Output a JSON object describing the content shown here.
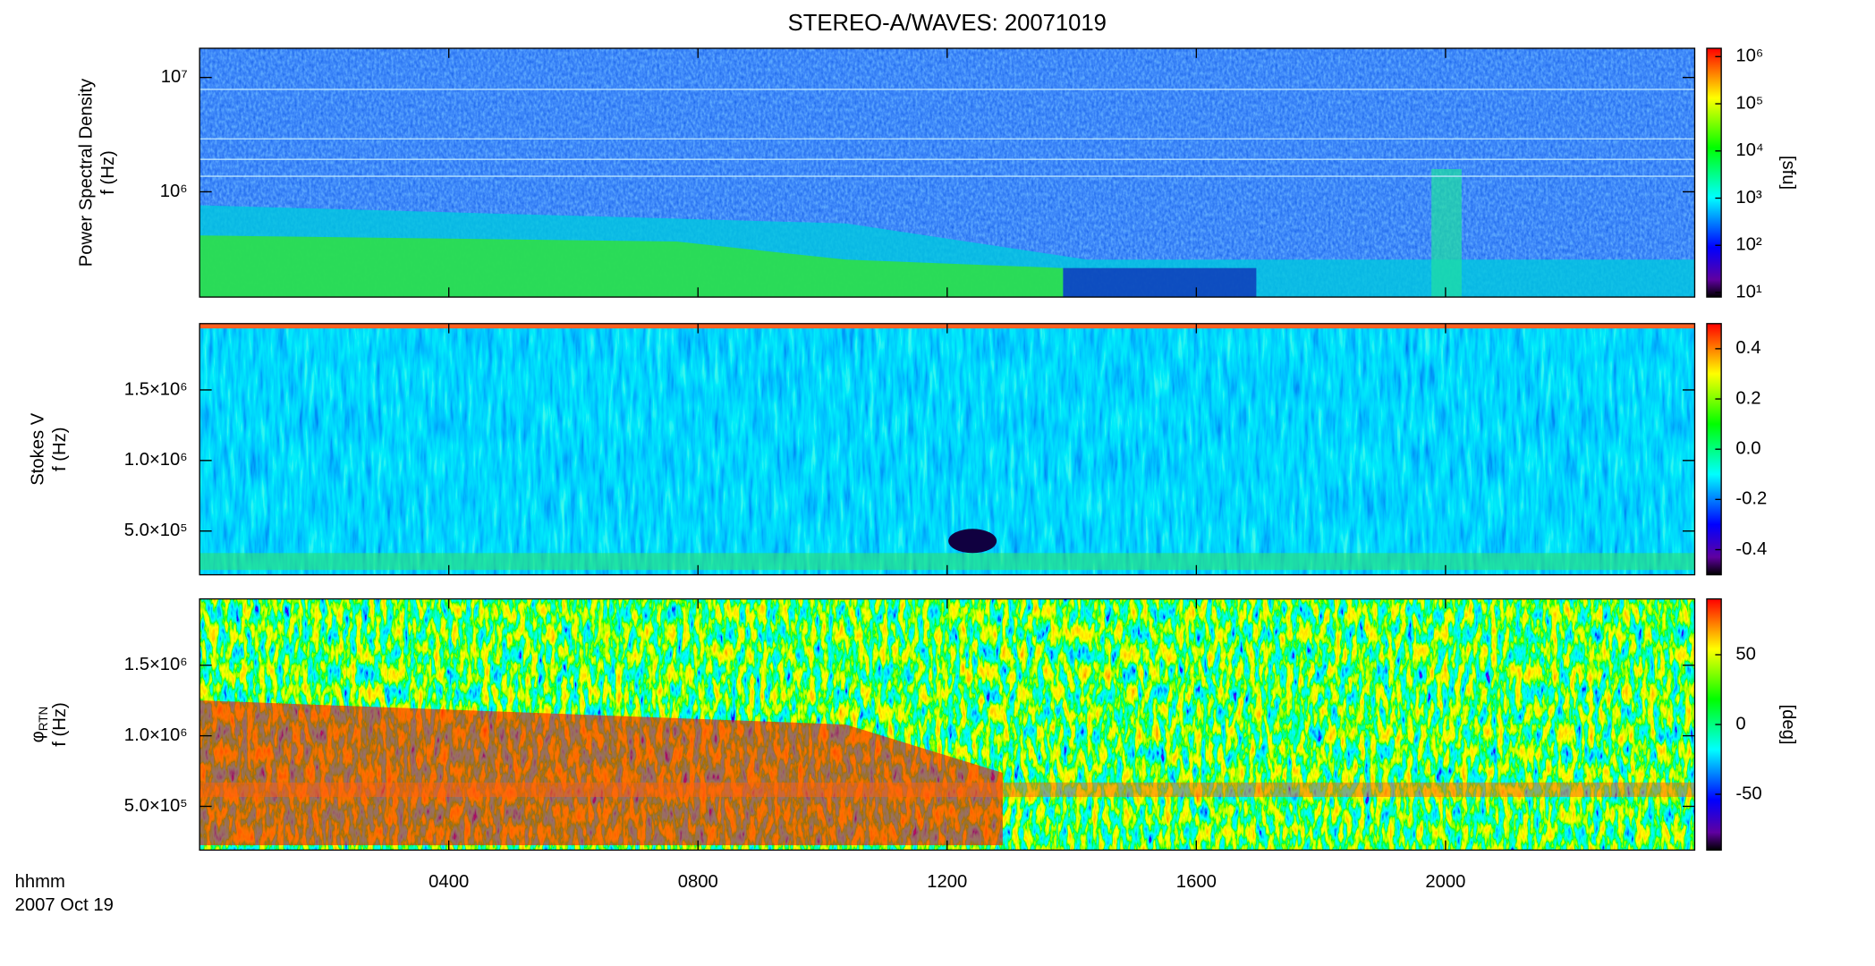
{
  "title": "STEREO-A/WAVES: 20071019",
  "x_axis": {
    "xlim": [
      0,
      24
    ],
    "xticks": [
      {
        "value": 4,
        "label": "0400"
      },
      {
        "value": 8,
        "label": "0800"
      },
      {
        "value": 12,
        "label": "1200"
      },
      {
        "value": 16,
        "label": "1600"
      },
      {
        "value": 20,
        "label": "2000"
      }
    ],
    "label": [
      "hhmm",
      "2007 Oct 19"
    ]
  },
  "chart_data": [
    {
      "type": "spectrogram",
      "ylabel": [
        "Power Spectral Density",
        "f (Hz)"
      ],
      "log": true,
      "ylim": [
        120000,
        18000000
      ],
      "yticks": [
        {
          "value": 1000000,
          "label": "10⁶"
        },
        {
          "value": 10000000,
          "label": "10⁷"
        }
      ],
      "colorbar": {
        "log": true,
        "clim": [
          8,
          1500000
        ],
        "label": "[sfu]",
        "ticks": [
          {
            "value": 10,
            "label": "10¹"
          },
          {
            "value": 100,
            "label": "10²"
          },
          {
            "value": 1000,
            "label": "10³"
          },
          {
            "value": 10000,
            "label": "10⁴"
          },
          {
            "value": 100000,
            "label": "10⁵"
          },
          {
            "value": 1000000,
            "label": "10⁶"
          }
        ]
      }
    },
    {
      "type": "spectrogram",
      "ylabel": [
        "Stokes V",
        "f (Hz)"
      ],
      "log": false,
      "ylim": [
        190000,
        1970000
      ],
      "yticks": [
        {
          "value": 500000,
          "label": "5.0×10⁵"
        },
        {
          "value": 1000000,
          "label": "1.0×10⁶"
        },
        {
          "value": 1500000,
          "label": "1.5×10⁶"
        }
      ],
      "colorbar": {
        "log": false,
        "clim": [
          -0.5,
          0.5
        ],
        "ticks": [
          -0.4,
          -0.2,
          {
            "value": 0,
            "label": "0.0"
          },
          0.2,
          0.4
        ]
      }
    },
    {
      "type": "spectrogram",
      "ylabel": [
        "φ",
        "f (Hz)"
      ],
      "ylabel_subscript": "RTN",
      "log": false,
      "ylim": [
        190000,
        1970000
      ],
      "yticks": [
        {
          "value": 500000,
          "label": "5.0×10⁵"
        },
        {
          "value": 1000000,
          "label": "1.0×10⁶"
        },
        {
          "value": 1500000,
          "label": "1.5×10⁶"
        }
      ],
      "colorbar": {
        "log": false,
        "clim": [
          -90,
          90
        ],
        "label": "[deg]",
        "ticks": [
          -50,
          0,
          50
        ]
      }
    }
  ]
}
